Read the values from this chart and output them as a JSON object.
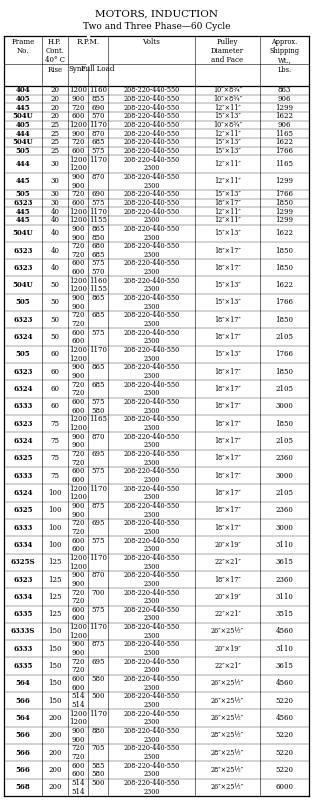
{
  "title1": "MOTORS, INDUCTION",
  "title2": "Two and Three Phase—60 Cycle",
  "col_headers": [
    "Frame\nNo.",
    "H.P.\nCont.\n40° C\nRise",
    "R.P.M.",
    "Volts",
    "Pulley\nDiameter\nand Face",
    "Approx.\nShipping\nWt.,\nLbs."
  ],
  "rpm_sub": [
    "Sync.",
    "Full Load"
  ],
  "rows": [
    {
      "frame": "404",
      "hp": "20",
      "sync": "1200",
      "fl": "1160",
      "volts": [
        "208-220-440-550"
      ],
      "pulley": "10″×8¾″",
      "wt": "863"
    },
    {
      "frame": "405",
      "hp": "20",
      "sync": "900",
      "fl": "855",
      "volts": [
        "208-220-440-550"
      ],
      "pulley": "10″×8¾″",
      "wt": "906"
    },
    {
      "frame": "445",
      "hp": "20",
      "sync": "720",
      "fl": "690",
      "volts": [
        "208-220-440-550"
      ],
      "pulley": "12″×11″",
      "wt": "1299"
    },
    {
      "frame": "504U",
      "hp": "20",
      "sync": "600",
      "fl": "570",
      "volts": [
        "208-220-440-550"
      ],
      "pulley": "15″×13″",
      "wt": "1622"
    },
    {
      "frame": "405",
      "hp": "25",
      "sync": "1200",
      "fl": "1170",
      "volts": [
        "208-220-440-550"
      ],
      "pulley": "10″×8¾″",
      "wt": "906"
    },
    {
      "frame": "444",
      "hp": "25",
      "sync": "900",
      "fl": "870",
      "volts": [
        "208-220-440-550"
      ],
      "pulley": "12″×11″",
      "wt": "1165"
    },
    {
      "frame": "504U",
      "hp": "25",
      "sync": "720",
      "fl": "685",
      "volts": [
        "208-220-440-550"
      ],
      "pulley": "15″×13″",
      "wt": "1622"
    },
    {
      "frame": "505",
      "hp": "25",
      "sync": "600",
      "fl": "575",
      "volts": [
        "208-220-440-550"
      ],
      "pulley": "15″×13″",
      "wt": "1766"
    },
    {
      "frame": "444",
      "hp": "30",
      "sync": "1200",
      "fl": "1170",
      "volts": [
        "208-220-440-550",
        "2300"
      ],
      "pulley": "12″×11″",
      "wt": "1165"
    },
    {
      "frame": "445",
      "hp": "30",
      "sync": "900",
      "fl": "870",
      "volts": [
        "208-220-440-550",
        "2300"
      ],
      "pulley": "12″×11″",
      "wt": "1299"
    },
    {
      "frame": "505",
      "hp": "30",
      "sync": "720",
      "fl": "690",
      "volts": [
        "208-220-440-550"
      ],
      "pulley": "15″×13″",
      "wt": "1766"
    },
    {
      "frame": "6323",
      "hp": "30",
      "sync": "600",
      "fl": "575",
      "volts": [
        "208-220-440-550"
      ],
      "pulley": "18″×17″",
      "wt": "1850"
    },
    {
      "frame": "445",
      "hp": "40",
      "sync": "1200",
      "fl": "1170",
      "volts": [
        "208-220-440-550"
      ],
      "pulley": "12″×11″",
      "wt": "1299"
    },
    {
      "frame": "445",
      "hp": "40",
      "sync": "1200",
      "fl": "1155",
      "volts": [
        "2300"
      ],
      "pulley": "12″×11″",
      "wt": "1299"
    },
    {
      "frame": "504U",
      "hp": "40",
      "sync": "900",
      "fl": "865\n850",
      "volts": [
        "208-220-440-550",
        "2300"
      ],
      "pulley": "15″×13″",
      "wt": "1622"
    },
    {
      "frame": "6323",
      "hp": "40",
      "sync": "720",
      "fl": "680\n685",
      "volts": [
        "208-220-440-550",
        "2300"
      ],
      "pulley": "18″×17″",
      "wt": "1850"
    },
    {
      "frame": "6323",
      "hp": "40",
      "sync": "600",
      "fl": "575\n570",
      "volts": [
        "208-220-440-550",
        "2300"
      ],
      "pulley": "18″×17″",
      "wt": "1850"
    },
    {
      "frame": "504U",
      "hp": "50",
      "sync": "1200",
      "fl": "1160\n1155",
      "volts": [
        "208-220-440-550",
        "2300"
      ],
      "pulley": "15″×13″",
      "wt": "1622"
    },
    {
      "frame": "505",
      "hp": "50",
      "sync": "900",
      "fl": "865",
      "volts": [
        "208-220-440-550",
        "2300"
      ],
      "pulley": "15″×13″",
      "wt": "1766"
    },
    {
      "frame": "6323",
      "hp": "50",
      "sync": "720",
      "fl": "685",
      "volts": [
        "208-220-440-550",
        "2300"
      ],
      "pulley": "18″×17″",
      "wt": "1850"
    },
    {
      "frame": "6324",
      "hp": "50",
      "sync": "600",
      "fl": "575",
      "volts": [
        "208-220-440-550",
        "2300"
      ],
      "pulley": "18″×17″",
      "wt": "2105"
    },
    {
      "frame": "505",
      "hp": "60",
      "sync": "1200",
      "fl": "1170",
      "volts": [
        "208-220-440-550",
        "2300"
      ],
      "pulley": "15″×13″",
      "wt": "1766"
    },
    {
      "frame": "6323",
      "hp": "60",
      "sync": "900",
      "fl": "865",
      "volts": [
        "208-220-440-550",
        "2300"
      ],
      "pulley": "18″×17″",
      "wt": "1850"
    },
    {
      "frame": "6324",
      "hp": "60",
      "sync": "720",
      "fl": "685",
      "volts": [
        "208-220-440-550",
        "2300"
      ],
      "pulley": "18″×17″",
      "wt": "2105"
    },
    {
      "frame": "6333",
      "hp": "60",
      "sync": "600",
      "fl": "575\n580",
      "volts": [
        "208-220-440-550",
        "2300"
      ],
      "pulley": "18″×17″",
      "wt": "3000"
    },
    {
      "frame": "6323",
      "hp": "75",
      "sync": "1200",
      "fl": "1165",
      "volts": [
        "208-220-440-550",
        "2300"
      ],
      "pulley": "18″×17″",
      "wt": "1850"
    },
    {
      "frame": "6324",
      "hp": "75",
      "sync": "900",
      "fl": "870",
      "volts": [
        "208-220-440-550",
        "2300"
      ],
      "pulley": "18″×17″",
      "wt": "2105"
    },
    {
      "frame": "6325",
      "hp": "75",
      "sync": "720",
      "fl": "695",
      "volts": [
        "208-220-440-550",
        "2300"
      ],
      "pulley": "18″×17″",
      "wt": "2360"
    },
    {
      "frame": "6333",
      "hp": "75",
      "sync": "600",
      "fl": "575",
      "volts": [
        "208-220-440-550",
        "2300"
      ],
      "pulley": "18″×17″",
      "wt": "3000"
    },
    {
      "frame": "6324",
      "hp": "100",
      "sync": "1200",
      "fl": "1170",
      "volts": [
        "208-220-440-550",
        "2300"
      ],
      "pulley": "18″×17″",
      "wt": "2105"
    },
    {
      "frame": "6325",
      "hp": "100",
      "sync": "900",
      "fl": "875",
      "volts": [
        "208-220-440-550",
        "2300"
      ],
      "pulley": "18″×17″",
      "wt": "2360"
    },
    {
      "frame": "6333",
      "hp": "100",
      "sync": "720",
      "fl": "695",
      "volts": [
        "208-220-440-550",
        "2300"
      ],
      "pulley": "18″×17″",
      "wt": "3000"
    },
    {
      "frame": "6334",
      "hp": "100",
      "sync": "600",
      "fl": "575",
      "volts": [
        "208-220-440-550",
        "2300"
      ],
      "pulley": "20″×19″",
      "wt": "3110"
    },
    {
      "frame": "6325S",
      "hp": "125",
      "sync": "1200",
      "fl": "1170",
      "volts": [
        "208-220-440-550",
        "2300"
      ],
      "pulley": "22″×21″",
      "wt": "3615"
    },
    {
      "frame": "6323",
      "hp": "125",
      "sync": "900",
      "fl": "870",
      "volts": [
        "208-220-440-550",
        "2300"
      ],
      "pulley": "18″×17″",
      "wt": "2360"
    },
    {
      "frame": "6334",
      "hp": "125",
      "sync": "720",
      "fl": "700",
      "volts": [
        "208-220-440-550",
        "2300"
      ],
      "pulley": "20″×19″",
      "wt": "3110"
    },
    {
      "frame": "6335",
      "hp": "125",
      "sync": "600",
      "fl": "575",
      "volts": [
        "208-220-440-550",
        "2300"
      ],
      "pulley": "22″×21″",
      "wt": "3515"
    },
    {
      "frame": "6333S",
      "hp": "150",
      "sync": "1200",
      "fl": "1170",
      "volts": [
        "208-220-440-550",
        "2300"
      ],
      "pulley": "26″×25½″",
      "wt": "4560"
    },
    {
      "frame": "6333",
      "hp": "150",
      "sync": "900",
      "fl": "875",
      "volts": [
        "208-220-440-550",
        "2300"
      ],
      "pulley": "20″×19″",
      "wt": "3110"
    },
    {
      "frame": "6335",
      "hp": "150",
      "sync": "720",
      "fl": "695",
      "volts": [
        "208-220-440-550",
        "2300"
      ],
      "pulley": "22″×21″",
      "wt": "3615"
    },
    {
      "frame": "564",
      "hp": "150",
      "sync": "600",
      "fl": "580",
      "volts": [
        "208-220-440-550",
        "2300"
      ],
      "pulley": "26″×25½″",
      "wt": "4560"
    },
    {
      "frame": "566",
      "hp": "150",
      "sync": "514",
      "fl": "500",
      "volts": [
        "208-220-440-550",
        "2300"
      ],
      "pulley": "26″×25½″",
      "wt": "5220"
    },
    {
      "frame": "564",
      "hp": "200",
      "sync": "1200",
      "fl": "1170",
      "volts": [
        "208-220-440-550",
        "2300"
      ],
      "pulley": "26″×25½″",
      "wt": "4560"
    },
    {
      "frame": "566",
      "hp": "200",
      "sync": "900",
      "fl": "880",
      "volts": [
        "208-220-440-550",
        "2300"
      ],
      "pulley": "28″×25½″",
      "wt": "5220"
    },
    {
      "frame": "566",
      "hp": "200",
      "sync": "720",
      "fl": "705",
      "volts": [
        "208-220-440-550",
        "2300"
      ],
      "pulley": "28″×25½″",
      "wt": "5220"
    },
    {
      "frame": "566",
      "hp": "200",
      "sync": "600",
      "fl": "585\n580",
      "volts": [
        "208-220-440-550",
        "2300"
      ],
      "pulley": "28″×25½″",
      "wt": "5220"
    },
    {
      "frame": "568",
      "hp": "200",
      "sync": "514",
      "fl": "500",
      "volts": [
        "208-220-440-550",
        "2300"
      ],
      "pulley": "26″×25½″",
      "wt": "6000"
    }
  ]
}
